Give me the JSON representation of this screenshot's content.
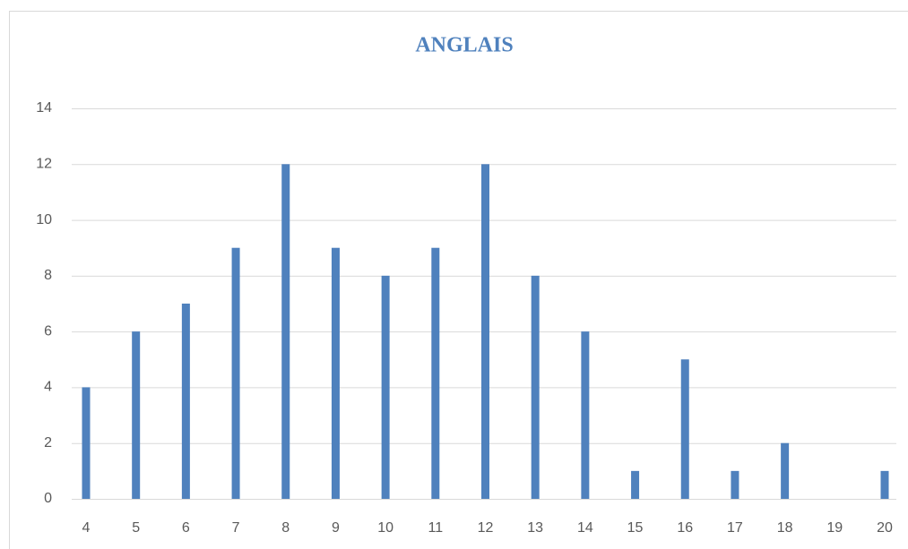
{
  "chart_data": {
    "type": "bar",
    "title": "ANGLAIS",
    "categories": [
      "4",
      "5",
      "6",
      "7",
      "8",
      "9",
      "10",
      "11",
      "12",
      "13",
      "14",
      "15",
      "16",
      "17",
      "18",
      "19",
      "20"
    ],
    "values": [
      4,
      6,
      7,
      9,
      12,
      9,
      8,
      9,
      12,
      8,
      6,
      1,
      5,
      1,
      2,
      0,
      1
    ],
    "color": "#4f81bd",
    "ylim": [
      0,
      14
    ],
    "yticks": [
      0,
      2,
      4,
      6,
      8,
      10,
      12,
      14
    ],
    "grid": true
  }
}
